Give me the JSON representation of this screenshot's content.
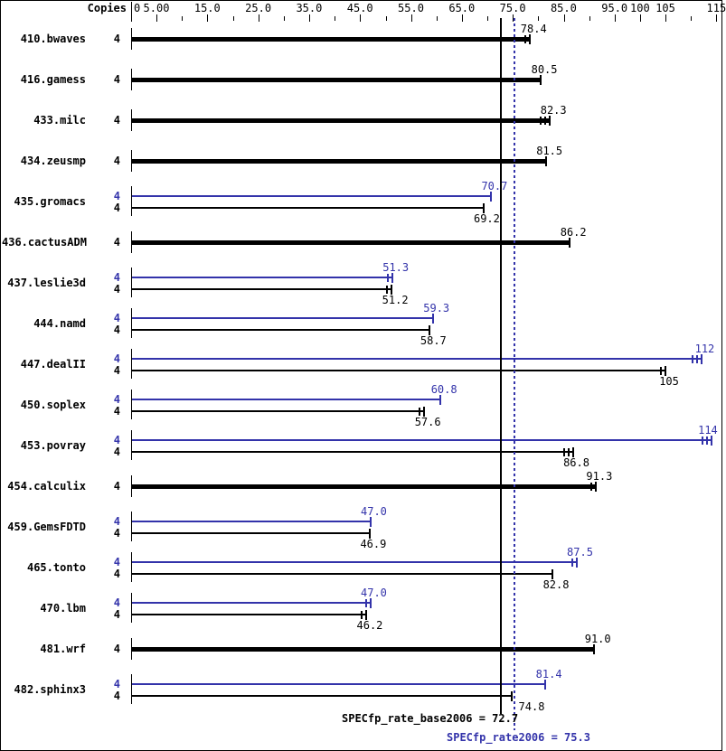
{
  "header": {
    "copies_label": "Copies"
  },
  "axis": {
    "zero_label": "0",
    "major_ticks": [
      {
        "value": 5,
        "label": "5.00"
      },
      {
        "value": 15,
        "label": "15.0"
      },
      {
        "value": 25,
        "label": "25.0"
      },
      {
        "value": 35,
        "label": "35.0"
      },
      {
        "value": 45,
        "label": "45.0"
      },
      {
        "value": 55,
        "label": "55.0"
      },
      {
        "value": 65,
        "label": "65.0"
      },
      {
        "value": 75,
        "label": "75.0"
      },
      {
        "value": 85,
        "label": "85.0"
      },
      {
        "value": 95,
        "label": "95.0"
      },
      {
        "value": 100,
        "label": "100"
      },
      {
        "value": 105,
        "label": "105"
      },
      {
        "value": 115,
        "label": "115"
      }
    ],
    "minor_ticks": [
      10,
      20,
      30,
      40,
      50,
      60,
      70,
      80,
      90,
      110
    ]
  },
  "chart_data": {
    "type": "bar",
    "orientation": "horizontal",
    "x_range": [
      0,
      115
    ],
    "grid": false,
    "series_colors": {
      "base": "#000000",
      "peak": "#3333aa"
    },
    "benchmarks": [
      {
        "name": "410.bwaves",
        "bars": [
          {
            "series": "base",
            "copies": "4",
            "value": 78.4,
            "label": "78.4",
            "end_ticks": 2
          }
        ]
      },
      {
        "name": "416.gamess",
        "bars": [
          {
            "series": "base",
            "copies": "4",
            "value": 80.5,
            "label": "80.5",
            "end_ticks": 1
          }
        ]
      },
      {
        "name": "433.milc",
        "bars": [
          {
            "series": "base",
            "copies": "4",
            "value": 82.3,
            "label": "82.3",
            "end_ticks": 3
          }
        ]
      },
      {
        "name": "434.zeusmp",
        "bars": [
          {
            "series": "base",
            "copies": "4",
            "value": 81.5,
            "label": "81.5",
            "end_ticks": 1
          }
        ]
      },
      {
        "name": "435.gromacs",
        "bars": [
          {
            "series": "peak",
            "copies": "4",
            "value": 70.7,
            "label": "70.7",
            "end_ticks": 1
          },
          {
            "series": "base",
            "copies": "4",
            "value": 69.2,
            "label": "69.2",
            "end_ticks": 1
          }
        ]
      },
      {
        "name": "436.cactusADM",
        "bars": [
          {
            "series": "base",
            "copies": "4",
            "value": 86.2,
            "label": "86.2",
            "end_ticks": 1
          }
        ]
      },
      {
        "name": "437.leslie3d",
        "bars": [
          {
            "series": "peak",
            "copies": "4",
            "value": 51.3,
            "label": "51.3",
            "end_ticks": 2
          },
          {
            "series": "base",
            "copies": "4",
            "value": 51.2,
            "label": "51.2",
            "end_ticks": 2
          }
        ]
      },
      {
        "name": "444.namd",
        "bars": [
          {
            "series": "peak",
            "copies": "4",
            "value": 59.3,
            "label": "59.3",
            "end_ticks": 1
          },
          {
            "series": "base",
            "copies": "4",
            "value": 58.7,
            "label": "58.7",
            "end_ticks": 1
          }
        ]
      },
      {
        "name": "447.dealII",
        "bars": [
          {
            "series": "peak",
            "copies": "4",
            "value": 112,
            "label": "112",
            "end_ticks": 3
          },
          {
            "series": "base",
            "copies": "4",
            "value": 105,
            "label": "105",
            "end_ticks": 2
          }
        ]
      },
      {
        "name": "450.soplex",
        "bars": [
          {
            "series": "peak",
            "copies": "4",
            "value": 60.8,
            "label": "60.8",
            "end_ticks": 1
          },
          {
            "series": "base",
            "copies": "4",
            "value": 57.6,
            "label": "57.6",
            "end_ticks": 2
          }
        ]
      },
      {
        "name": "453.povray",
        "bars": [
          {
            "series": "peak",
            "copies": "4",
            "value": 114,
            "label": "114",
            "end_ticks": 3
          },
          {
            "series": "base",
            "copies": "4",
            "value": 86.8,
            "label": "86.8",
            "end_ticks": 3
          }
        ]
      },
      {
        "name": "454.calculix",
        "bars": [
          {
            "series": "base",
            "copies": "4",
            "value": 91.3,
            "label": "91.3",
            "end_ticks": 2
          }
        ]
      },
      {
        "name": "459.GemsFDTD",
        "bars": [
          {
            "series": "peak",
            "copies": "4",
            "value": 47.0,
            "label": "47.0",
            "end_ticks": 1
          },
          {
            "series": "base",
            "copies": "4",
            "value": 46.9,
            "label": "46.9",
            "end_ticks": 1
          }
        ]
      },
      {
        "name": "465.tonto",
        "bars": [
          {
            "series": "peak",
            "copies": "4",
            "value": 87.5,
            "label": "87.5",
            "end_ticks": 2
          },
          {
            "series": "base",
            "copies": "4",
            "value": 82.8,
            "label": "82.8",
            "end_ticks": 1
          }
        ]
      },
      {
        "name": "470.lbm",
        "bars": [
          {
            "series": "peak",
            "copies": "4",
            "value": 47.0,
            "label": "47.0",
            "end_ticks": 2
          },
          {
            "series": "base",
            "copies": "4",
            "value": 46.2,
            "label": "46.2",
            "end_ticks": 2
          }
        ]
      },
      {
        "name": "481.wrf",
        "bars": [
          {
            "series": "base",
            "copies": "4",
            "value": 91.0,
            "label": "91.0",
            "end_ticks": 1
          }
        ]
      },
      {
        "name": "482.sphinx3",
        "bars": [
          {
            "series": "peak",
            "copies": "4",
            "value": 81.4,
            "label": "81.4",
            "end_ticks": 1
          },
          {
            "series": "base",
            "copies": "4",
            "value": 74.8,
            "label": "74.8",
            "end_ticks": 1,
            "label_dx": 18
          }
        ]
      }
    ],
    "reference_lines": [
      {
        "name": "SPECfp_rate_base2006",
        "series": "base",
        "value": 72.7,
        "style": "solid"
      },
      {
        "name": "SPECfp_rate2006",
        "series": "peak",
        "value": 75.3,
        "style": "dotted"
      }
    ]
  },
  "footer": {
    "base_summary": "SPECfp_rate_base2006 = 72.7",
    "peak_summary": "SPECfp_rate2006 = 75.3"
  }
}
